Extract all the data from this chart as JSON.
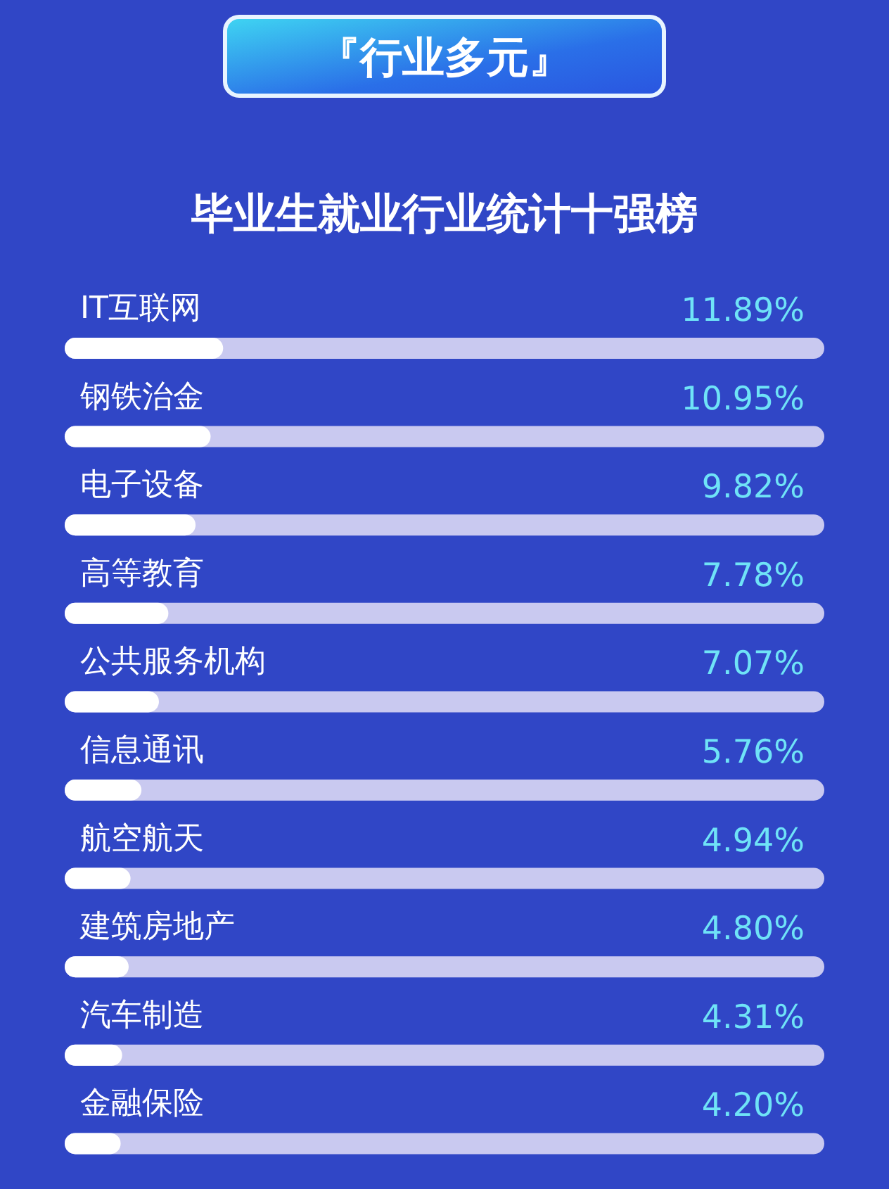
{
  "chart_data": {
    "type": "bar",
    "orientation": "horizontal",
    "title": "『行业多元』",
    "subtitle": "毕业生就业行业统计十强榜",
    "categories": [
      "IT互联网",
      "钢铁治金",
      "电子设备",
      "高等教育",
      "公共服务机构",
      "信息通讯",
      "航空航天",
      "建筑房地产",
      "汽车制造",
      "金融保险"
    ],
    "values": [
      11.89,
      10.95,
      9.82,
      7.78,
      7.07,
      5.76,
      4.94,
      4.8,
      4.31,
      4.2
    ],
    "value_labels": [
      "11.89%",
      "10.95%",
      "9.82%",
      "7.78%",
      "7.07%",
      "5.76%",
      "4.94%",
      "4.80%",
      "4.31%",
      "4.20%"
    ],
    "color": "#ffffff",
    "xlim": [
      0,
      57
    ]
  }
}
